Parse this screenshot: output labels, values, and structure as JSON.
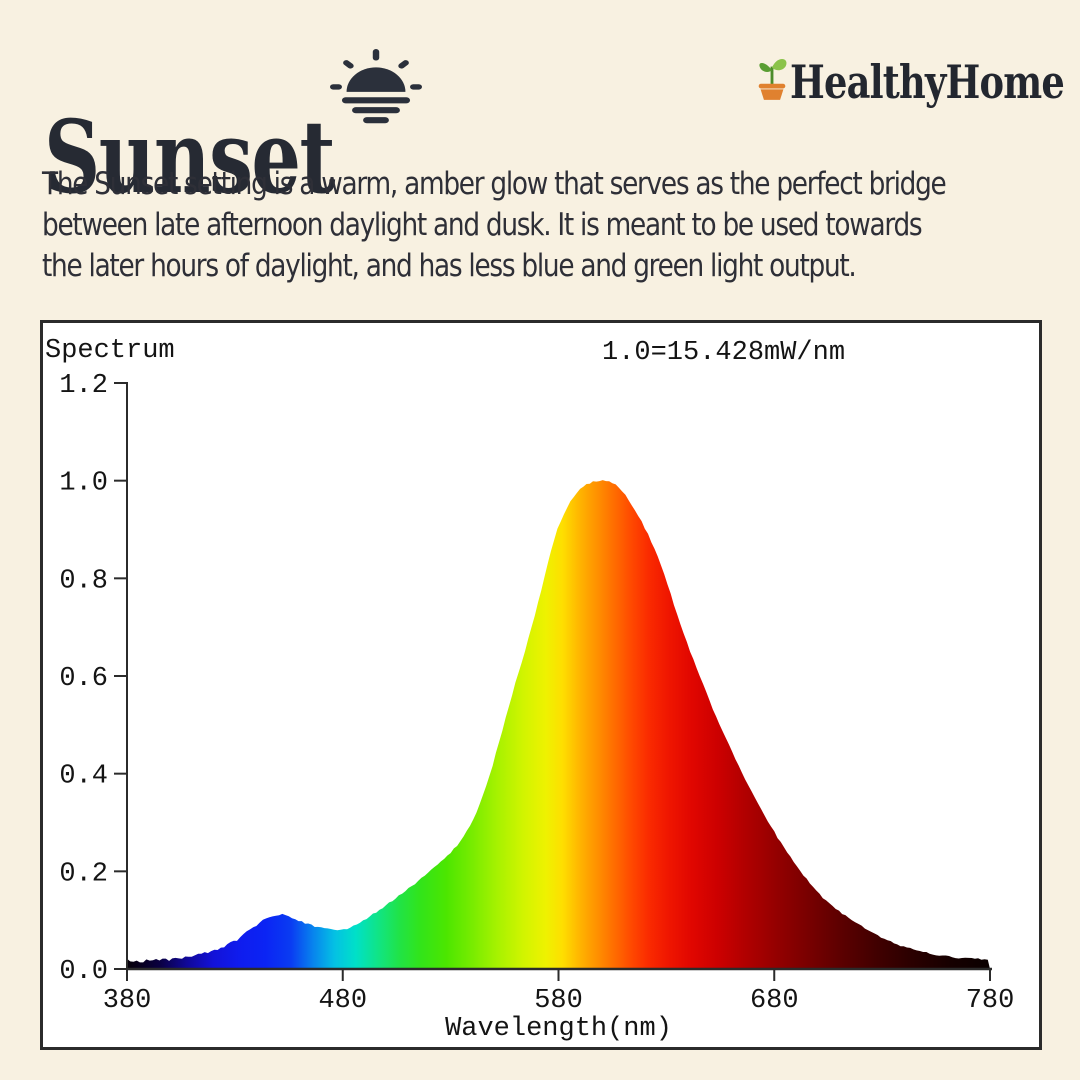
{
  "theme": {
    "background": "#f8f1e1",
    "panel_border": "#2b2b2b",
    "axis": "#2b2b2b",
    "chart_text": "#141414",
    "icon": "#2b303b",
    "pot": "#e0812f",
    "leaf_light": "#8bc34a",
    "leaf_dark": "#5a9e33",
    "stem": "#4c8c2b"
  },
  "header": {
    "title": "Sunset",
    "brand": "HealthyHome"
  },
  "description": {
    "lines": [
      "The Sunset setting is a warm, amber glow that serves as the perfect bridge",
      "between late afternoon daylight and dusk. It is meant to be used towards",
      "the later hours of daylight, and has less blue and green light output."
    ]
  },
  "chart_data": {
    "type": "area",
    "title": "Spectrum",
    "scale_note": "1.0=15.428mW/nm",
    "xlabel": "Wavelength(nm)",
    "ylabel": "",
    "xlim": [
      380,
      780
    ],
    "ylim": [
      0,
      1.2
    ],
    "x_tick_labels": [
      "380",
      "480",
      "580",
      "680",
      "780"
    ],
    "y_tick_labels": [
      "0.0",
      "0.2",
      "0.4",
      "0.6",
      "0.8",
      "1.0",
      "1.2"
    ],
    "grid": false,
    "legend": "none",
    "peak": {
      "wavelength_nm": 600,
      "value": 1.0
    },
    "secondary_peak": {
      "wavelength_nm": 452,
      "value": 0.11
    },
    "dip": {
      "wavelength_nm": 478,
      "value": 0.08
    },
    "points": [
      [
        380,
        0.018
      ],
      [
        386,
        0.015
      ],
      [
        392,
        0.02
      ],
      [
        398,
        0.019
      ],
      [
        404,
        0.022
      ],
      [
        410,
        0.026
      ],
      [
        416,
        0.032
      ],
      [
        422,
        0.04
      ],
      [
        428,
        0.052
      ],
      [
        434,
        0.07
      ],
      [
        440,
        0.09
      ],
      [
        446,
        0.105
      ],
      [
        451,
        0.112
      ],
      [
        455,
        0.108
      ],
      [
        460,
        0.098
      ],
      [
        466,
        0.089
      ],
      [
        472,
        0.083
      ],
      [
        477,
        0.08
      ],
      [
        482,
        0.083
      ],
      [
        488,
        0.095
      ],
      [
        494,
        0.112
      ],
      [
        500,
        0.13
      ],
      [
        506,
        0.15
      ],
      [
        512,
        0.17
      ],
      [
        518,
        0.192
      ],
      [
        524,
        0.213
      ],
      [
        530,
        0.238
      ],
      [
        536,
        0.272
      ],
      [
        542,
        0.322
      ],
      [
        548,
        0.395
      ],
      [
        554,
        0.49
      ],
      [
        560,
        0.585
      ],
      [
        566,
        0.675
      ],
      [
        572,
        0.775
      ],
      [
        578,
        0.88
      ],
      [
        584,
        0.945
      ],
      [
        590,
        0.982
      ],
      [
        595,
        0.996
      ],
      [
        600,
        1.0
      ],
      [
        605,
        0.995
      ],
      [
        610,
        0.975
      ],
      [
        616,
        0.935
      ],
      [
        622,
        0.885
      ],
      [
        628,
        0.82
      ],
      [
        634,
        0.74
      ],
      [
        640,
        0.663
      ],
      [
        646,
        0.594
      ],
      [
        652,
        0.528
      ],
      [
        658,
        0.468
      ],
      [
        664,
        0.412
      ],
      [
        670,
        0.358
      ],
      [
        676,
        0.31
      ],
      [
        682,
        0.266
      ],
      [
        688,
        0.226
      ],
      [
        694,
        0.19
      ],
      [
        700,
        0.158
      ],
      [
        706,
        0.132
      ],
      [
        712,
        0.112
      ],
      [
        718,
        0.094
      ],
      [
        724,
        0.078
      ],
      [
        730,
        0.064
      ],
      [
        736,
        0.052
      ],
      [
        742,
        0.043
      ],
      [
        748,
        0.036
      ],
      [
        754,
        0.03
      ],
      [
        760,
        0.026
      ],
      [
        766,
        0.023
      ],
      [
        772,
        0.021
      ],
      [
        776,
        0.02
      ],
      [
        780,
        0.018
      ]
    ],
    "spectrum_colors": [
      {
        "wl": 380,
        "color": "#060008"
      },
      {
        "wl": 395,
        "color": "#0a0040"
      },
      {
        "wl": 408,
        "color": "#10089a"
      },
      {
        "wl": 420,
        "color": "#1312d8"
      },
      {
        "wl": 432,
        "color": "#0f1cee"
      },
      {
        "wl": 444,
        "color": "#0b24f4"
      },
      {
        "wl": 456,
        "color": "#0a3cf2"
      },
      {
        "wl": 466,
        "color": "#0882ee"
      },
      {
        "wl": 476,
        "color": "#04c0e4"
      },
      {
        "wl": 486,
        "color": "#00e0c8"
      },
      {
        "wl": 496,
        "color": "#10e488"
      },
      {
        "wl": 506,
        "color": "#20e348"
      },
      {
        "wl": 516,
        "color": "#32e41a"
      },
      {
        "wl": 528,
        "color": "#4ce600"
      },
      {
        "wl": 540,
        "color": "#78ec00"
      },
      {
        "wl": 552,
        "color": "#a8f200"
      },
      {
        "wl": 564,
        "color": "#d2f400"
      },
      {
        "wl": 574,
        "color": "#eef200"
      },
      {
        "wl": 582,
        "color": "#fede00"
      },
      {
        "wl": 590,
        "color": "#ffb400"
      },
      {
        "wl": 598,
        "color": "#ff9000"
      },
      {
        "wl": 606,
        "color": "#ff6c00"
      },
      {
        "wl": 614,
        "color": "#ff4800"
      },
      {
        "wl": 622,
        "color": "#fa2a00"
      },
      {
        "wl": 632,
        "color": "#ee1400"
      },
      {
        "wl": 642,
        "color": "#e00600"
      },
      {
        "wl": 654,
        "color": "#cc0000"
      },
      {
        "wl": 666,
        "color": "#b20000"
      },
      {
        "wl": 680,
        "color": "#960000"
      },
      {
        "wl": 696,
        "color": "#780000"
      },
      {
        "wl": 712,
        "color": "#5a0000"
      },
      {
        "wl": 728,
        "color": "#400000"
      },
      {
        "wl": 744,
        "color": "#2a0000"
      },
      {
        "wl": 762,
        "color": "#160000"
      },
      {
        "wl": 780,
        "color": "#0a0000"
      }
    ]
  }
}
